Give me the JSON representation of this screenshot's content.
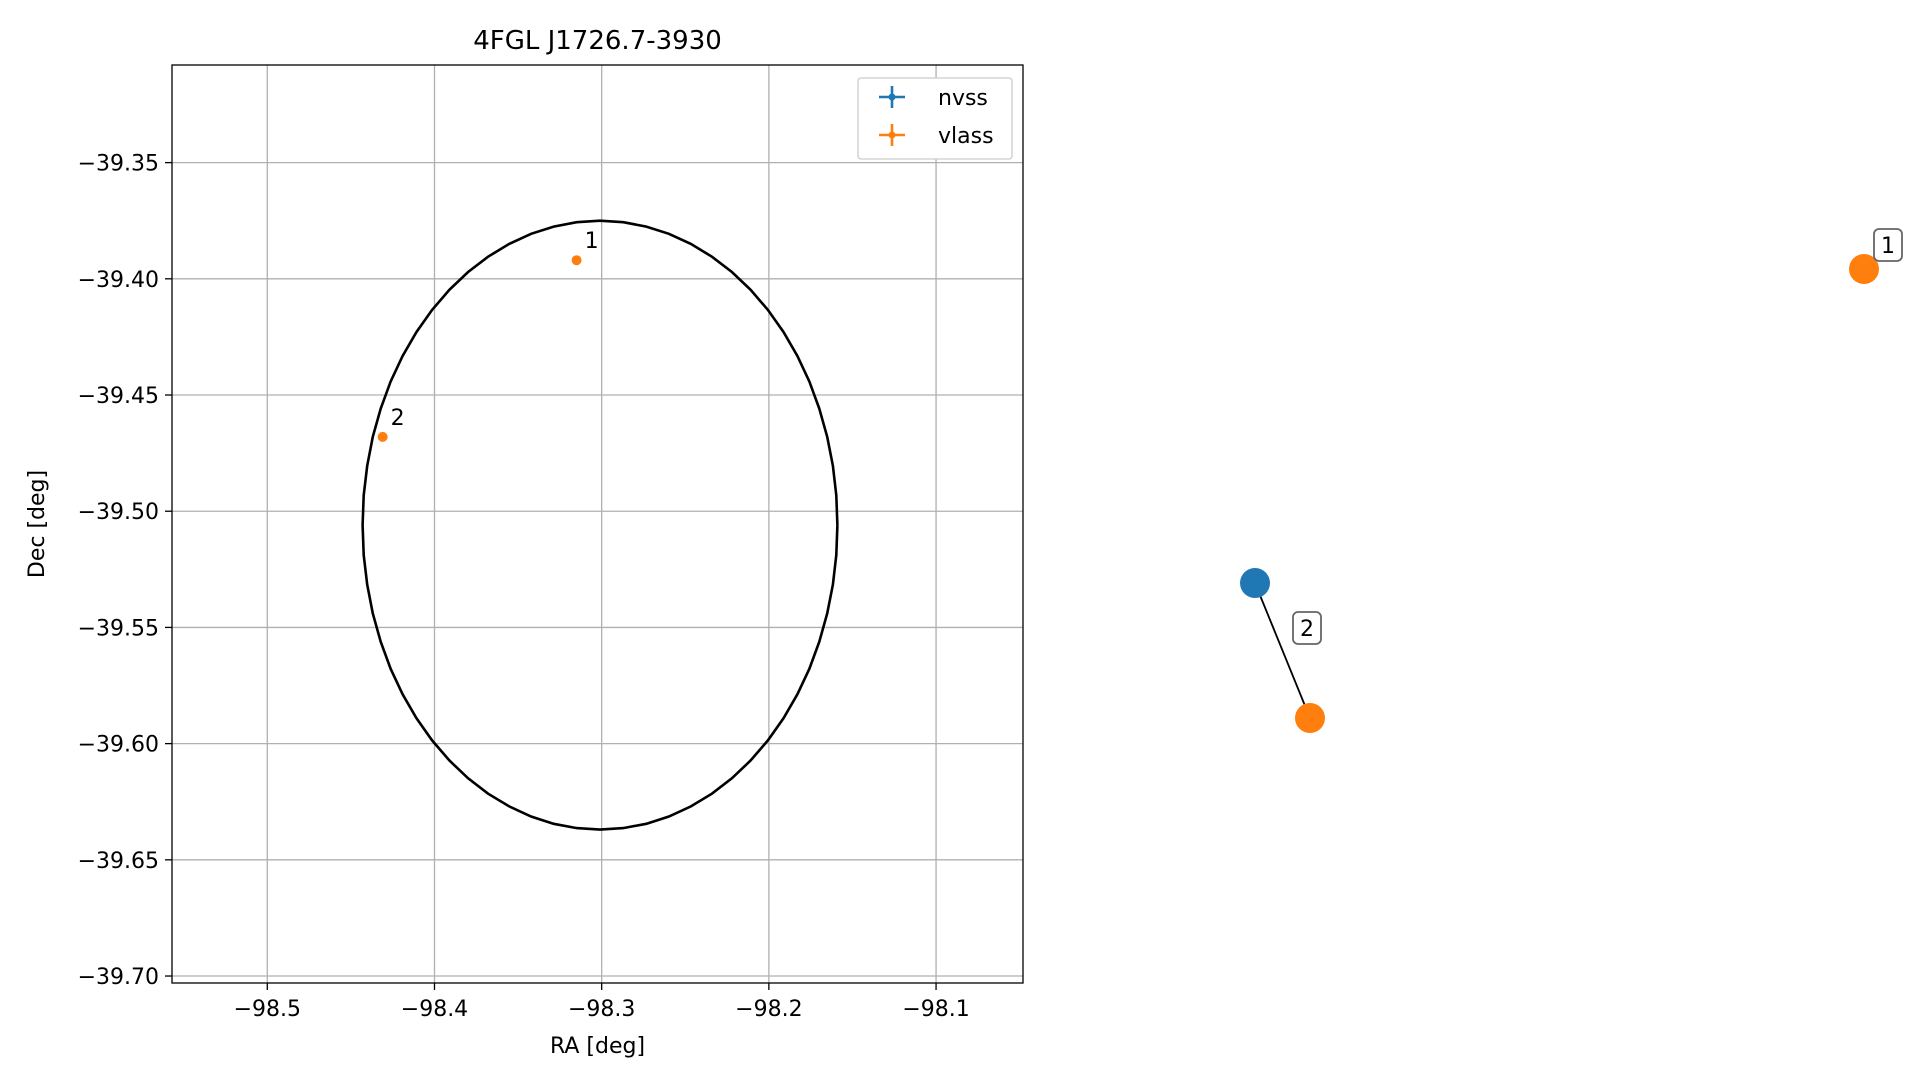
{
  "chart_data": [
    {
      "type": "scatter",
      "title": "4FGL J1726.7-3930",
      "xlabel": "RA [deg]",
      "ylabel": "Dec [deg]",
      "xlim": [
        -98.557,
        -98.048
      ],
      "ylim": [
        -39.703,
        -39.308
      ],
      "grid": true,
      "legend_placement": "top-right",
      "x_ticks": [
        -98.5,
        -98.4,
        -98.3,
        -98.2,
        -98.1
      ],
      "x_tick_labels": [
        "−98.5",
        "−98.4",
        "−98.3",
        "−98.2",
        "−98.1"
      ],
      "y_ticks": [
        -39.35,
        -39.4,
        -39.45,
        -39.5,
        -39.55,
        -39.6,
        -39.65,
        -39.7
      ],
      "y_tick_labels": [
        "−39.35",
        "−39.40",
        "−39.45",
        "−39.50",
        "−39.55",
        "−39.60",
        "−39.65",
        "−39.70"
      ],
      "legend": [
        {
          "name": "nvss",
          "color": "#1f77b4"
        },
        {
          "name": "vlass",
          "color": "#ff7f0e"
        }
      ],
      "series": [
        {
          "name": "nvss",
          "color": "#1f77b4",
          "points": []
        },
        {
          "name": "vlass",
          "color": "#ff7f0e",
          "points": [
            {
              "x": -98.315,
              "y": -39.392,
              "label": "1"
            },
            {
              "x": -98.431,
              "y": -39.468,
              "label": "2"
            }
          ]
        }
      ],
      "ellipse": {
        "center_x": -98.301,
        "center_y": -39.506,
        "semi_x": 0.142,
        "semi_y": 0.131,
        "color": "#000000"
      }
    },
    {
      "type": "network",
      "nodes": [
        {
          "id": "nvss-2",
          "series": "nvss",
          "color": "#1f77b4"
        },
        {
          "id": "vlass-2",
          "series": "vlass",
          "color": "#ff7f0e"
        },
        {
          "id": "vlass-1",
          "series": "vlass",
          "color": "#ff7f0e"
        }
      ],
      "edges": [
        {
          "from": "nvss-2",
          "to": "vlass-2",
          "label": "2"
        }
      ],
      "node_labels": [
        {
          "node": "vlass-1",
          "label": "1"
        }
      ]
    }
  ]
}
